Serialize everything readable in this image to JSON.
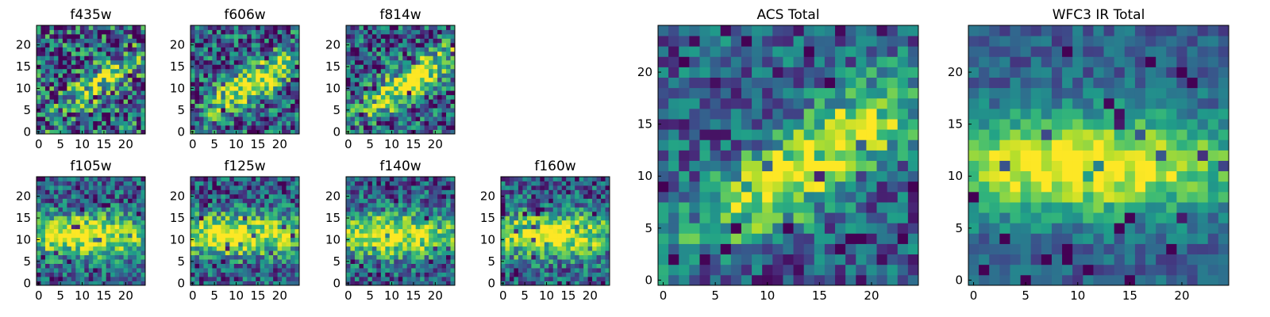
{
  "chart_data": [
    {
      "type": "heatmap",
      "title": "f435w",
      "grid_size": 25,
      "xticks": [
        0,
        5,
        10,
        15,
        20
      ],
      "yticks": [
        0,
        5,
        10,
        15,
        20
      ],
      "colormap": "viridis",
      "blob": "diagonal-faint",
      "noise": 0.6,
      "seed": 11
    },
    {
      "type": "heatmap",
      "title": "f606w",
      "grid_size": 25,
      "xticks": [
        0,
        5,
        10,
        15,
        20
      ],
      "yticks": [
        0,
        5,
        10,
        15,
        20
      ],
      "colormap": "viridis",
      "blob": "diagonal",
      "noise": 0.5,
      "seed": 23
    },
    {
      "type": "heatmap",
      "title": "f814w",
      "grid_size": 25,
      "xticks": [
        0,
        5,
        10,
        15,
        20
      ],
      "yticks": [
        0,
        5,
        10,
        15,
        20
      ],
      "colormap": "viridis",
      "blob": "diagonal",
      "noise": 0.5,
      "seed": 37
    },
    {
      "type": "heatmap",
      "title": "f105w",
      "grid_size": 25,
      "xticks": [
        0,
        5,
        10,
        15,
        20
      ],
      "yticks": [
        0,
        5,
        10,
        15,
        20
      ],
      "colormap": "viridis",
      "blob": "horizontal",
      "noise": 0.38,
      "seed": 41
    },
    {
      "type": "heatmap",
      "title": "f125w",
      "grid_size": 25,
      "xticks": [
        0,
        5,
        10,
        15,
        20
      ],
      "yticks": [
        0,
        5,
        10,
        15,
        20
      ],
      "colormap": "viridis",
      "blob": "horizontal",
      "noise": 0.38,
      "seed": 53
    },
    {
      "type": "heatmap",
      "title": "f140w",
      "grid_size": 25,
      "xticks": [
        0,
        5,
        10,
        15,
        20
      ],
      "yticks": [
        0,
        5,
        10,
        15,
        20
      ],
      "colormap": "viridis",
      "blob": "horizontal",
      "noise": 0.38,
      "seed": 67
    },
    {
      "type": "heatmap",
      "title": "f160w",
      "grid_size": 25,
      "xticks": [
        0,
        5,
        10,
        15,
        20
      ],
      "yticks": [
        0,
        5,
        10,
        15,
        20
      ],
      "colormap": "viridis",
      "blob": "horizontal",
      "noise": 0.4,
      "seed": 79
    },
    {
      "type": "heatmap",
      "title": "ACS Total",
      "grid_size": 25,
      "xticks": [
        0,
        5,
        10,
        15,
        20
      ],
      "yticks": [
        0,
        5,
        10,
        15,
        20
      ],
      "colormap": "viridis",
      "blob": "diagonal",
      "noise": 0.35,
      "seed": 83
    },
    {
      "type": "heatmap",
      "title": "WFC3 IR Total",
      "grid_size": 25,
      "xticks": [
        0,
        5,
        10,
        15,
        20
      ],
      "yticks": [
        0,
        5,
        10,
        15,
        20
      ],
      "colormap": "viridis",
      "blob": "horizontal",
      "noise": 0.2,
      "seed": 97
    }
  ]
}
